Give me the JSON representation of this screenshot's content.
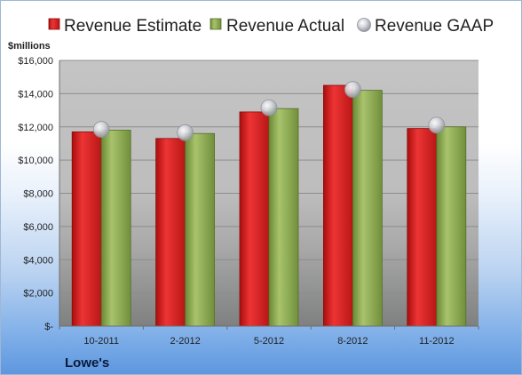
{
  "chart_data": {
    "type": "bar",
    "categories": [
      "10-2011",
      "2-2012",
      "5-2012",
      "8-2012",
      "11-2012"
    ],
    "series": [
      {
        "name": "Revenue Estimate",
        "values": [
          11700,
          11300,
          12900,
          14500,
          11900
        ],
        "color": "#d42020"
      },
      {
        "name": "Revenue Actual",
        "values": [
          11800,
          11600,
          13100,
          14200,
          12000
        ],
        "color": "#8fac55"
      },
      {
        "name": "Revenue GAAP",
        "values": [
          11850,
          11650,
          13150,
          14250,
          12100
        ],
        "color": "#b8bcc4",
        "style": "marker"
      }
    ],
    "ylabel": "$millions",
    "ylim": [
      0,
      16000
    ],
    "yticks": [
      0,
      2000,
      4000,
      6000,
      8000,
      10000,
      12000,
      14000,
      16000
    ],
    "ytick_labels": [
      "$-",
      "$2,000",
      "$4,000",
      "$6,000",
      "$8,000",
      "$10,000",
      "$12,000",
      "$14,000",
      "$16,000"
    ],
    "grid": true,
    "legend": "top",
    "footer": "Lowe's"
  }
}
